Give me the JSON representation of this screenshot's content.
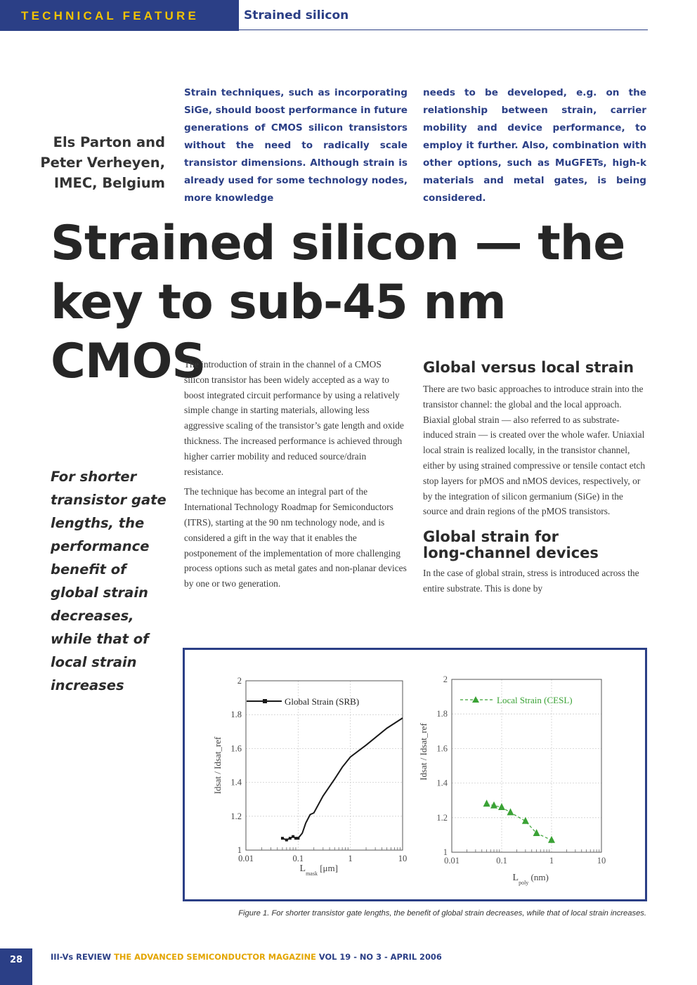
{
  "header": {
    "label": "TECHNICAL FEATURE",
    "section": "Strained silicon"
  },
  "authors": [
    "Els Parton and",
    "Peter Verheyen,",
    "IMEC, Belgium"
  ],
  "standfirst": {
    "col1": "Strain techniques, such as incorporating SiGe, should boost performance in future generations of CMOS silicon transistors without the need to radically scale transistor dimensions. Although strain is already used for some technology nodes, more knowledge",
    "col2": "needs to be developed, e.g. on the relationship between strain, carrier mobility and device performance, to employ it further. Also, combination with other options, such as MuGFETs, high-k materials and metal gates, is being considered."
  },
  "title": {
    "line1": "Strained silicon — the",
    "line2": "key to sub-45 nm CMOS"
  },
  "pullquote": "For shorter transistor gate lengths, the performance benefit of global strain decreases, while that of local strain increases",
  "body": {
    "p1": "The introduction of strain in the channel of a CMOS silicon transistor has been widely accepted as a way to boost integrated circuit performance by using a relatively simple change in starting materials, allowing less aggressive scaling of the transistor’s gate length and oxide thickness. The increased performance is achieved through higher carrier mobility and reduced source/drain resistance.",
    "p2": "The technique has become an integral part of the International Technology Roadmap for Semiconductors (ITRS), starting at the 90 nm technology node, and is considered a gift in the way that it enables the postponement of the implementation of more challenging process options such as metal gates and non-planar devices by one or two generation.",
    "h_global_local": "Global versus local strain",
    "p3": "There are two basic approaches to introduce strain into the transistor channel: the global and the local approach. Biaxial global strain — also referred to as substrate-induced strain — is created over the whole wafer. Uniaxial local strain is realized locally, in the transistor channel, either by using strained compressive or tensile contact etch stop layers for pMOS and nMOS devices, respectively, or by the integration of silicon germanium (SiGe) in the source and drain regions of the pMOS transistors.",
    "h_global_long_1": "Global strain for",
    "h_global_long_2": "long-channel devices",
    "p4": "In the case of global strain, stress is introduced across the entire substrate. This is done by"
  },
  "figure": {
    "caption": "Figure 1. For shorter transistor gate lengths, the benefit of global strain decreases, while that of local strain increases."
  },
  "chart_data": [
    {
      "type": "line",
      "xscale": "log",
      "xlim": [
        0.01,
        10
      ],
      "ylim": [
        1,
        2
      ],
      "xticks": [
        "0.01",
        "0.1",
        "1",
        "10"
      ],
      "yticks": [
        "1",
        "1.2",
        "1.4",
        "1.6",
        "1.8",
        "2"
      ],
      "xlabel_main": "L",
      "xlabel_sub": "mask",
      "xlabel_unit": "[μm]",
      "ylabel": "Idsat / Idsat_ref",
      "series": [
        {
          "name": "Global Strain (SRB)",
          "color": "#1a1a1a",
          "x": [
            0.05,
            0.06,
            0.07,
            0.08,
            0.09,
            0.1,
            0.12,
            0.14,
            0.17,
            0.2,
            0.3,
            0.5,
            0.7,
            1,
            2,
            5,
            10
          ],
          "y": [
            1.07,
            1.06,
            1.07,
            1.08,
            1.07,
            1.07,
            1.1,
            1.16,
            1.21,
            1.22,
            1.32,
            1.42,
            1.49,
            1.55,
            1.62,
            1.72,
            1.78
          ]
        }
      ]
    },
    {
      "type": "line",
      "xscale": "log",
      "xlim": [
        0.01,
        10
      ],
      "ylim": [
        1,
        2
      ],
      "xticks": [
        "0.01",
        "0.1",
        "1",
        "10"
      ],
      "yticks": [
        "1",
        "1.2",
        "1.4",
        "1.6",
        "1.8",
        "2"
      ],
      "xlabel_main": "L",
      "xlabel_sub": "poly",
      "xlabel_unit": "(nm)",
      "ylabel": "Idsat / Idsat_ref",
      "series": [
        {
          "name": "Local Strain (CESL)",
          "color": "#3aa235",
          "x": [
            0.05,
            0.07,
            0.1,
            0.15,
            0.3,
            0.5,
            1.0
          ],
          "y": [
            1.28,
            1.27,
            1.26,
            1.23,
            1.18,
            1.11,
            1.07
          ]
        }
      ]
    }
  ],
  "footer": {
    "page": "28",
    "pub": "III-Vs REVIEW",
    "mag": "THE ADVANCED SEMICONDUCTOR MAGAZINE",
    "issue": "VOL 19 - NO 3 - APRIL 2006"
  }
}
